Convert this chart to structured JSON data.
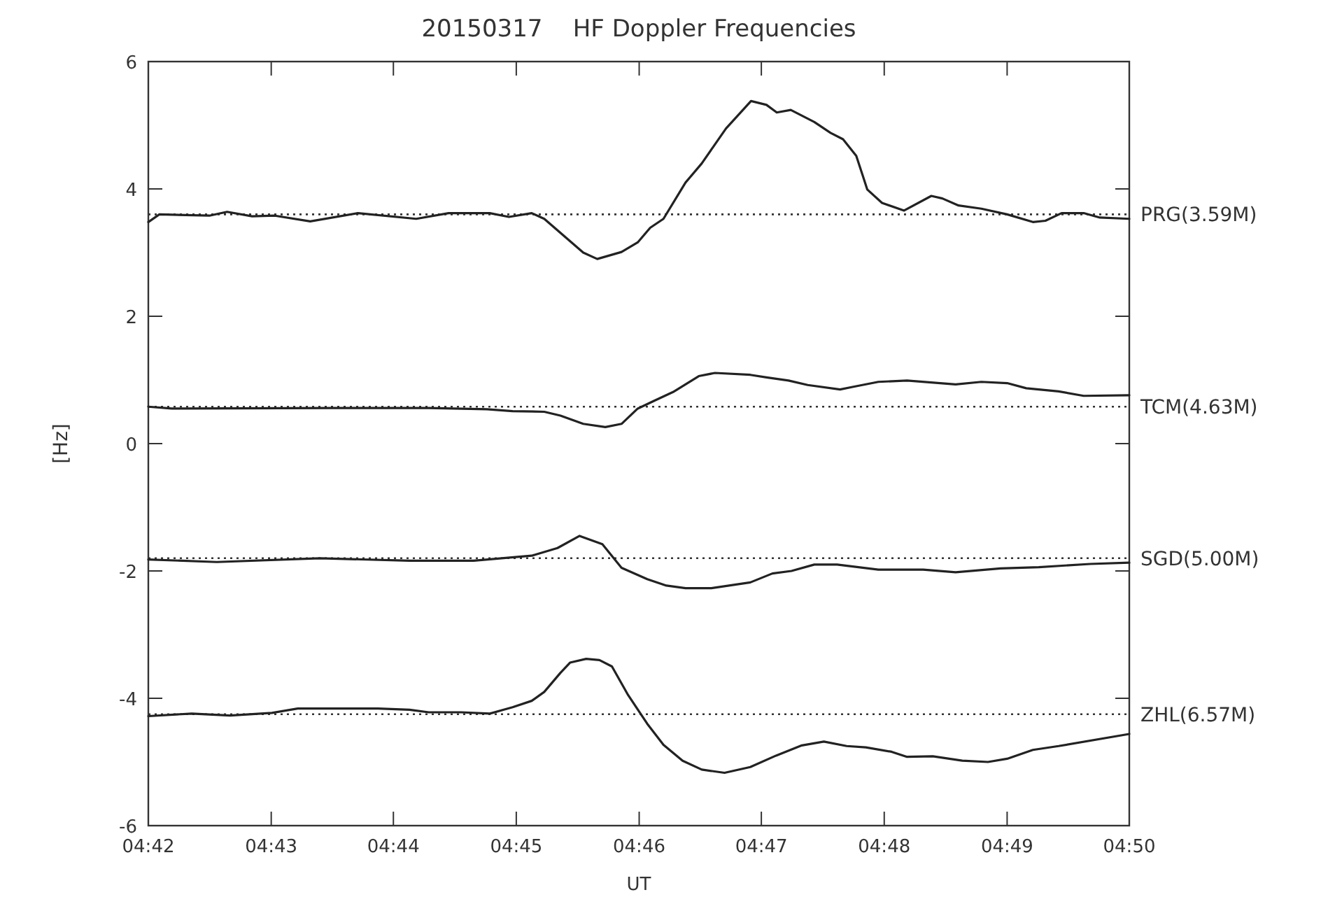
{
  "chart_data": {
    "type": "line",
    "title": "20150317    HF Doppler Frequencies",
    "xlabel": "UT",
    "ylabel": "[Hz]",
    "xlim": [
      4.7,
      4.8333
    ],
    "ylim": [
      -6,
      6
    ],
    "xticks": [
      {
        "value": 4.7,
        "label": "04:42"
      },
      {
        "value": 4.7167,
        "label": "04:43"
      },
      {
        "value": 4.7333,
        "label": "04:44"
      },
      {
        "value": 4.75,
        "label": "04:45"
      },
      {
        "value": 4.7667,
        "label": "04:46"
      },
      {
        "value": 4.7833,
        "label": "04:47"
      },
      {
        "value": 4.8,
        "label": "04:48"
      },
      {
        "value": 4.8167,
        "label": "04:49"
      },
      {
        "value": 4.8333,
        "label": "04:50"
      }
    ],
    "yticks": [
      -6,
      -4,
      -2,
      0,
      2,
      4,
      6
    ],
    "grid": false,
    "marker": "none",
    "line_style": "solid",
    "series": [
      {
        "color": "#222222",
        "x": [
          4.7,
          4.7015,
          4.7083,
          4.7107,
          4.7141,
          4.7172,
          4.722,
          4.7285,
          4.7364,
          4.7408,
          4.7464,
          4.749,
          4.7521,
          4.7538,
          4.7591,
          4.761,
          4.7643,
          4.7665,
          4.7682,
          4.77,
          4.773,
          4.7752,
          4.7785,
          4.7819,
          4.784,
          4.7854,
          4.7873,
          4.7905,
          4.7927,
          4.7944,
          4.7962,
          4.7977,
          4.7997,
          4.8027,
          4.8064,
          4.8079,
          4.8101,
          4.8132,
          4.8167,
          4.8202,
          4.8219,
          4.8241,
          4.8271,
          4.8293,
          4.8333
        ],
        "values": [
          3.48,
          3.6,
          3.58,
          3.64,
          3.57,
          3.58,
          3.49,
          3.62,
          3.53,
          3.62,
          3.62,
          3.56,
          3.62,
          3.53,
          3.0,
          2.9,
          3.01,
          3.16,
          3.39,
          3.53,
          4.1,
          4.4,
          4.95,
          5.38,
          5.32,
          5.2,
          5.24,
          5.05,
          4.88,
          4.78,
          4.52,
          3.99,
          3.78,
          3.66,
          3.89,
          3.85,
          3.74,
          3.69,
          3.6,
          3.48,
          3.5,
          3.62,
          3.62,
          3.55,
          3.53
        ]
      },
      {
        "color": "#222222",
        "x": [
          4.7,
          4.7032,
          4.7251,
          4.7381,
          4.746,
          4.7495,
          4.7538,
          4.756,
          4.7591,
          4.7621,
          4.7643,
          4.7665,
          4.7687,
          4.7713,
          4.7748,
          4.777,
          4.7818,
          4.784,
          4.787,
          4.7896,
          4.794,
          4.7957,
          4.7992,
          4.8031,
          4.8097,
          4.8132,
          4.8167,
          4.8193,
          4.8237,
          4.8271,
          4.8333
        ],
        "values": [
          0.58,
          0.55,
          0.56,
          0.56,
          0.54,
          0.51,
          0.5,
          0.44,
          0.31,
          0.26,
          0.31,
          0.55,
          0.67,
          0.81,
          1.06,
          1.11,
          1.08,
          1.04,
          0.99,
          0.92,
          0.85,
          0.89,
          0.97,
          0.99,
          0.93,
          0.97,
          0.95,
          0.87,
          0.82,
          0.75,
          0.76
        ]
      },
      {
        "color": "#222222",
        "x": [
          4.7,
          4.7093,
          4.7233,
          4.7355,
          4.7442,
          4.7521,
          4.7556,
          4.7586,
          4.7617,
          4.7643,
          4.7678,
          4.7704,
          4.773,
          4.7765,
          4.7818,
          4.7848,
          4.7874,
          4.7905,
          4.7936,
          4.7992,
          4.8053,
          4.8097,
          4.8158,
          4.821,
          4.828,
          4.8333
        ],
        "values": [
          -1.82,
          -1.86,
          -1.8,
          -1.84,
          -1.84,
          -1.76,
          -1.64,
          -1.45,
          -1.58,
          -1.95,
          -2.13,
          -2.23,
          -2.27,
          -2.27,
          -2.18,
          -2.04,
          -2.0,
          -1.9,
          -1.9,
          -1.98,
          -1.98,
          -2.02,
          -1.96,
          -1.94,
          -1.89,
          -1.87
        ]
      },
      {
        "color": "#222222",
        "x": [
          4.7,
          4.7059,
          4.7111,
          4.7168,
          4.7203,
          4.7312,
          4.7355,
          4.7381,
          4.7425,
          4.7464,
          4.7495,
          4.7521,
          4.7538,
          4.756,
          4.7573,
          4.7595,
          4.7613,
          4.763,
          4.7652,
          4.7678,
          4.77,
          4.7726,
          4.7752,
          4.7783,
          4.7818,
          4.7853,
          4.7888,
          4.7918,
          4.7949,
          4.7975,
          4.801,
          4.8031,
          4.8066,
          4.8106,
          4.8141,
          4.8167,
          4.8202,
          4.8237,
          4.8333
        ],
        "values": [
          -4.28,
          -4.24,
          -4.27,
          -4.23,
          -4.16,
          -4.16,
          -4.18,
          -4.22,
          -4.22,
          -4.24,
          -4.14,
          -4.04,
          -3.9,
          -3.6,
          -3.44,
          -3.38,
          -3.4,
          -3.5,
          -3.95,
          -4.4,
          -4.73,
          -4.98,
          -5.12,
          -5.17,
          -5.08,
          -4.9,
          -4.74,
          -4.68,
          -4.75,
          -4.77,
          -4.84,
          -4.92,
          -4.91,
          -4.98,
          -5.0,
          -4.95,
          -4.81,
          -4.75,
          -4.56
        ]
      }
    ],
    "ref_lines": [
      {
        "axis": "y",
        "value": 3.6,
        "label": "PRG(3.59M)",
        "line_style": "dotted",
        "color": "#333333"
      },
      {
        "axis": "y",
        "value": 0.58,
        "label": "TCM(4.63M)",
        "line_style": "dotted",
        "color": "#333333"
      },
      {
        "axis": "y",
        "value": -1.8,
        "label": "SGD(5.00M)",
        "line_style": "dotted",
        "color": "#333333"
      },
      {
        "axis": "y",
        "value": -4.25,
        "label": "ZHL(6.57M)",
        "line_style": "dotted",
        "color": "#333333"
      }
    ]
  }
}
